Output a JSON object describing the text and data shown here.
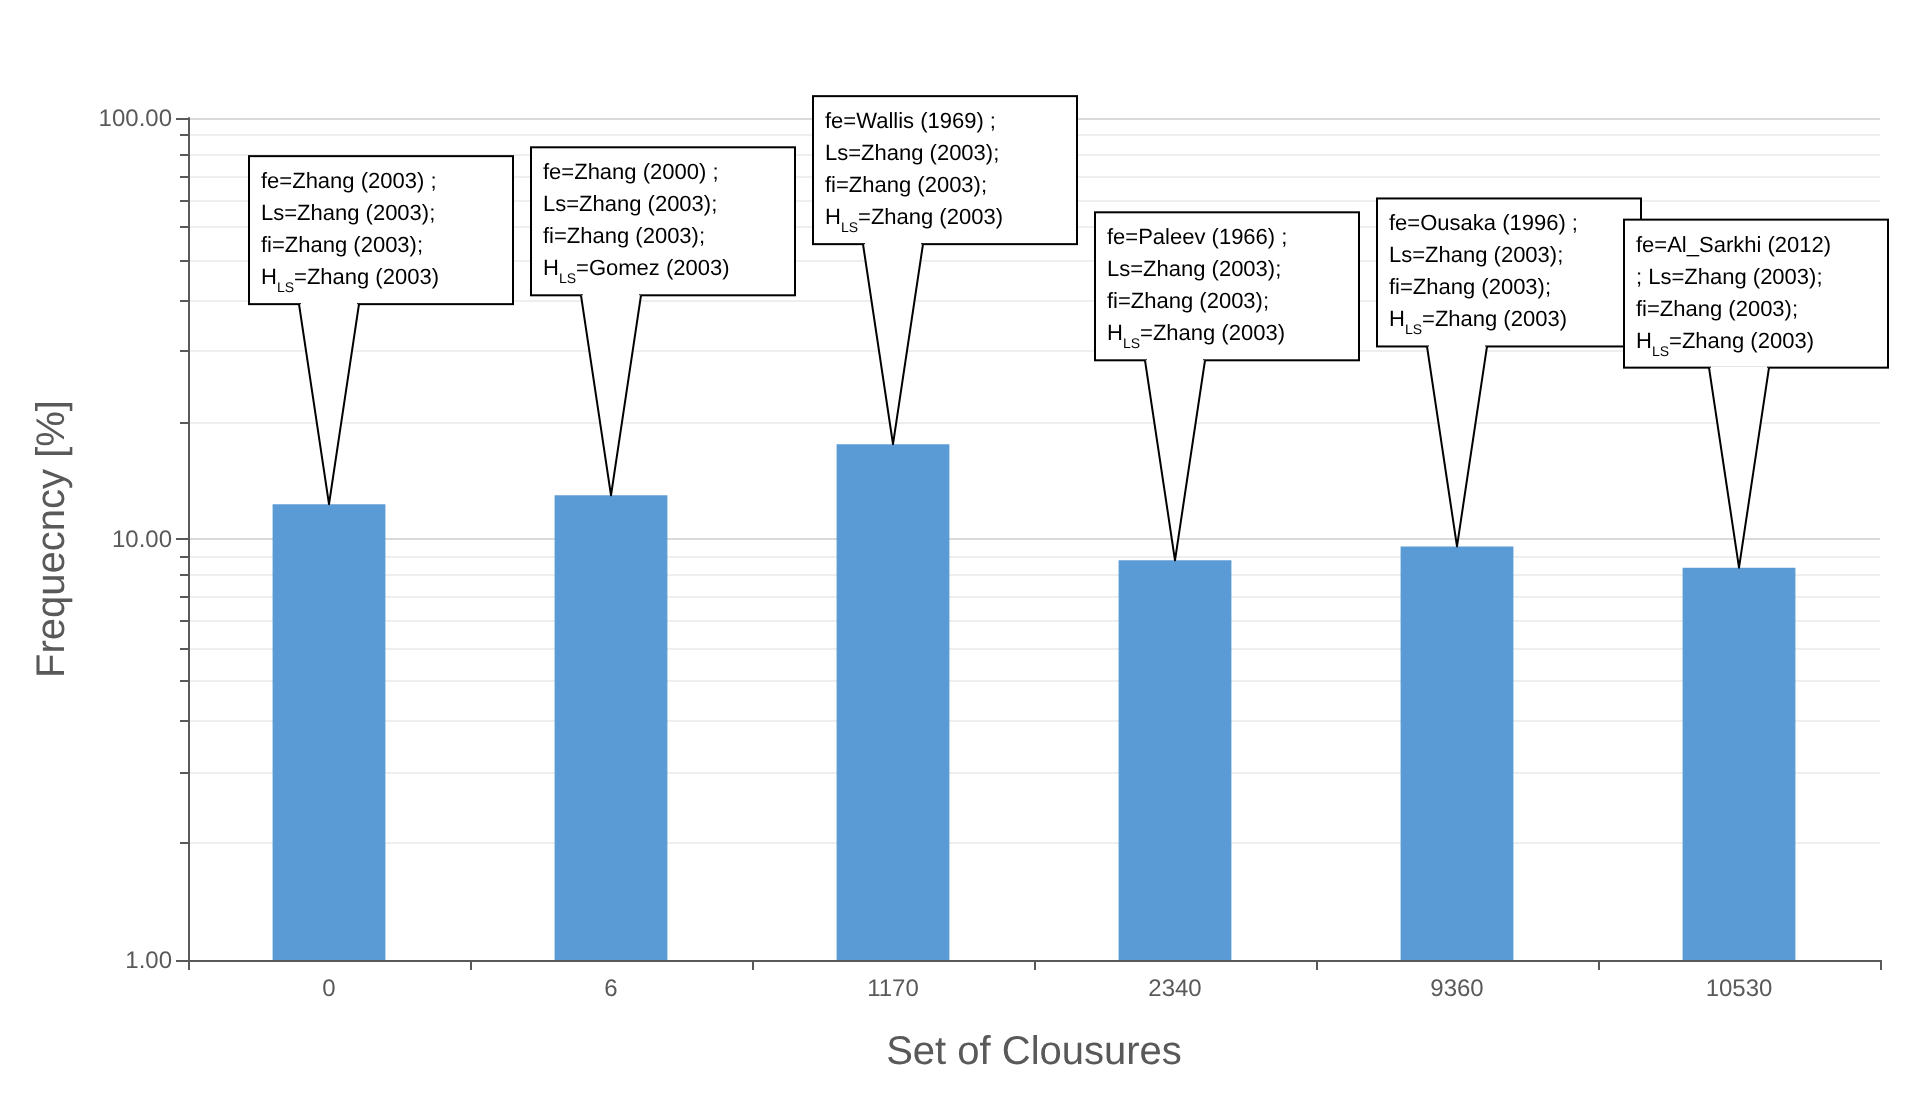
{
  "chart_data": {
    "type": "bar",
    "xlabel": "Set of Clousures",
    "ylabel": "Frequecncy [%]",
    "categories": [
      "0",
      "6",
      "1170",
      "2340",
      "9360",
      "10530"
    ],
    "values": [
      12.1,
      12.7,
      16.8,
      8.9,
      9.6,
      8.55
    ],
    "color": "#5b9bd5",
    "log": "y",
    "ylim": [
      1,
      100
    ],
    "yticks": [
      {
        "value": 1,
        "label": "1.00"
      },
      {
        "value": 10,
        "label": "10.00"
      },
      {
        "value": 100,
        "label": "100.00"
      }
    ],
    "grid": "y",
    "annotations": [
      {
        "text": "fe=Zhang (2003) ;\nLs=Zhang (2003);\nfi=Zhang (2003);\nH$_{LS}$=Zhang (2003)",
        "x": "0",
        "y": 12.1
      },
      {
        "text": "fe=Zhang (2000) ;\nLs=Zhang (2003);\nfi=Zhang (2003);\nH$_{LS}$=Gomez (2003)",
        "x": "6",
        "y": 12.7
      },
      {
        "text": "fe=Wallis (1969) ;\nLs=Zhang (2003);\nfi=Zhang (2003);\nH$_{LS}$=Zhang (2003)",
        "x": "1170",
        "y": 16.8
      },
      {
        "text": "fe=Paleev (1966) ;\nLs=Zhang (2003);\nfi=Zhang (2003);\nH$_{LS}$=Zhang (2003)",
        "x": "2340",
        "y": 8.9
      },
      {
        "text": "fe=Ousaka (1996) ;\nLs=Zhang (2003);\nfi=Zhang (2003);\nH$_{LS}$=Zhang (2003)",
        "x": "9360",
        "y": 9.6
      },
      {
        "text": "fe=Al_Sarkhi (2012)\n; Ls=Zhang (2003);\nfi=Zhang (2003);\nH$_{LS}$=Zhang (2003)",
        "x": "10530",
        "y": 8.55
      }
    ]
  }
}
